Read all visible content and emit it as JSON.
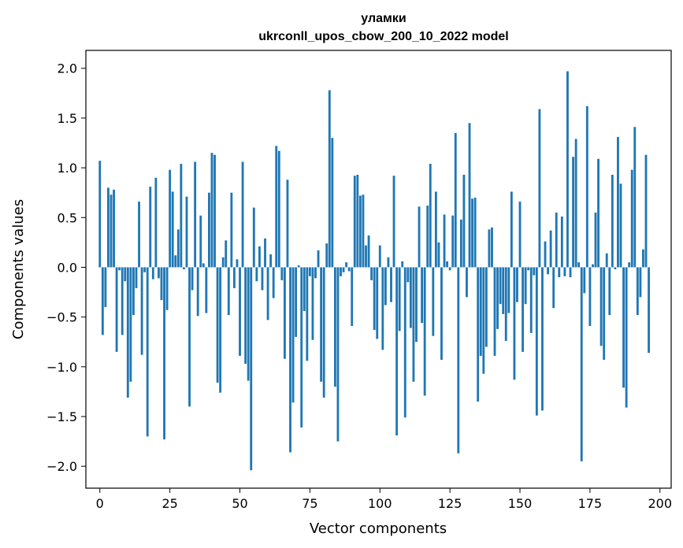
{
  "chart_data": {
    "type": "bar",
    "title": "уламки",
    "subtitle": "ukrconll_upos_cbow_200_10_2022 model",
    "xlabel": "Vector components",
    "ylabel": "Components values",
    "xlim": [
      -5,
      204
    ],
    "ylim": [
      -2.22,
      2.18
    ],
    "xticks": [
      0,
      25,
      50,
      75,
      100,
      125,
      150,
      175,
      200
    ],
    "yticks": [
      -2.0,
      -1.5,
      -1.0,
      -0.5,
      0.0,
      0.5,
      1.0,
      1.5,
      2.0
    ],
    "ytick_labels": [
      "−2.0",
      "−1.5",
      "−1.0",
      "−0.5",
      "0.0",
      "0.5",
      "1.0",
      "1.5",
      "2.0"
    ],
    "grid": false,
    "bar_color": "#1f77b4",
    "values": [
      1.07,
      -0.68,
      -0.4,
      0.8,
      0.73,
      0.78,
      -0.85,
      -0.03,
      -0.68,
      -0.14,
      -1.31,
      -1.15,
      -0.48,
      -0.21,
      0.66,
      -0.88,
      -0.05,
      -1.7,
      0.81,
      -0.12,
      0.9,
      -0.11,
      -0.33,
      -1.73,
      -0.43,
      0.98,
      0.76,
      0.12,
      0.38,
      1.04,
      -0.02,
      0.71,
      -1.4,
      -0.23,
      1.06,
      -0.49,
      0.52,
      0.04,
      -0.46,
      0.75,
      1.15,
      1.13,
      -1.16,
      -1.26,
      0.1,
      0.27,
      -0.48,
      0.75,
      -0.21,
      0.08,
      -0.89,
      1.06,
      -0.97,
      -1.14,
      -2.04,
      0.6,
      -0.14,
      0.21,
      -0.23,
      0.29,
      -0.53,
      0.13,
      -0.31,
      1.22,
      1.17,
      -0.13,
      -0.92,
      0.88,
      -1.86,
      -1.36,
      -0.7,
      0.02,
      -1.61,
      -0.44,
      -0.94,
      -0.09,
      -0.73,
      -0.11,
      0.17,
      -1.15,
      -1.31,
      0.24,
      1.78,
      1.3,
      -1.2,
      -1.75,
      -0.09,
      -0.05,
      0.05,
      -0.04,
      -0.59,
      0.92,
      0.93,
      0.72,
      0.73,
      0.22,
      0.32,
      -0.13,
      -0.63,
      -0.72,
      0.22,
      -0.83,
      -0.38,
      0.1,
      -0.35,
      0.92,
      -1.69,
      -0.64,
      0.06,
      -1.51,
      -0.15,
      -0.61,
      -1.15,
      -0.75,
      0.61,
      -0.56,
      -1.29,
      0.62,
      1.04,
      -0.69,
      0.76,
      0.25,
      -0.93,
      0.53,
      0.06,
      -0.03,
      0.52,
      1.35,
      -1.87,
      0.48,
      0.93,
      -0.3,
      1.45,
      0.69,
      0.7,
      -1.35,
      -0.89,
      -1.07,
      -0.8,
      0.38,
      0.4,
      -0.89,
      -0.62,
      -0.37,
      -0.47,
      -0.74,
      -0.46,
      0.76,
      -1.13,
      -0.35,
      0.66,
      -0.85,
      -0.37,
      -0.03,
      -0.66,
      -0.08,
      -1.49,
      1.59,
      -1.44,
      0.26,
      -0.07,
      0.37,
      -0.41,
      0.55,
      -0.1,
      0.51,
      -0.09,
      1.97,
      -0.1,
      1.11,
      1.29,
      0.05,
      -1.95,
      -0.26,
      1.62,
      -0.59,
      0.03,
      0.55,
      1.09,
      -0.79,
      -0.93,
      0.14,
      -0.48,
      0.93,
      -0.02,
      1.31,
      0.84,
      -1.21,
      -1.41,
      0.05,
      0.98,
      1.41,
      -0.48,
      -0.3,
      0.18,
      1.13,
      -0.86
    ]
  }
}
